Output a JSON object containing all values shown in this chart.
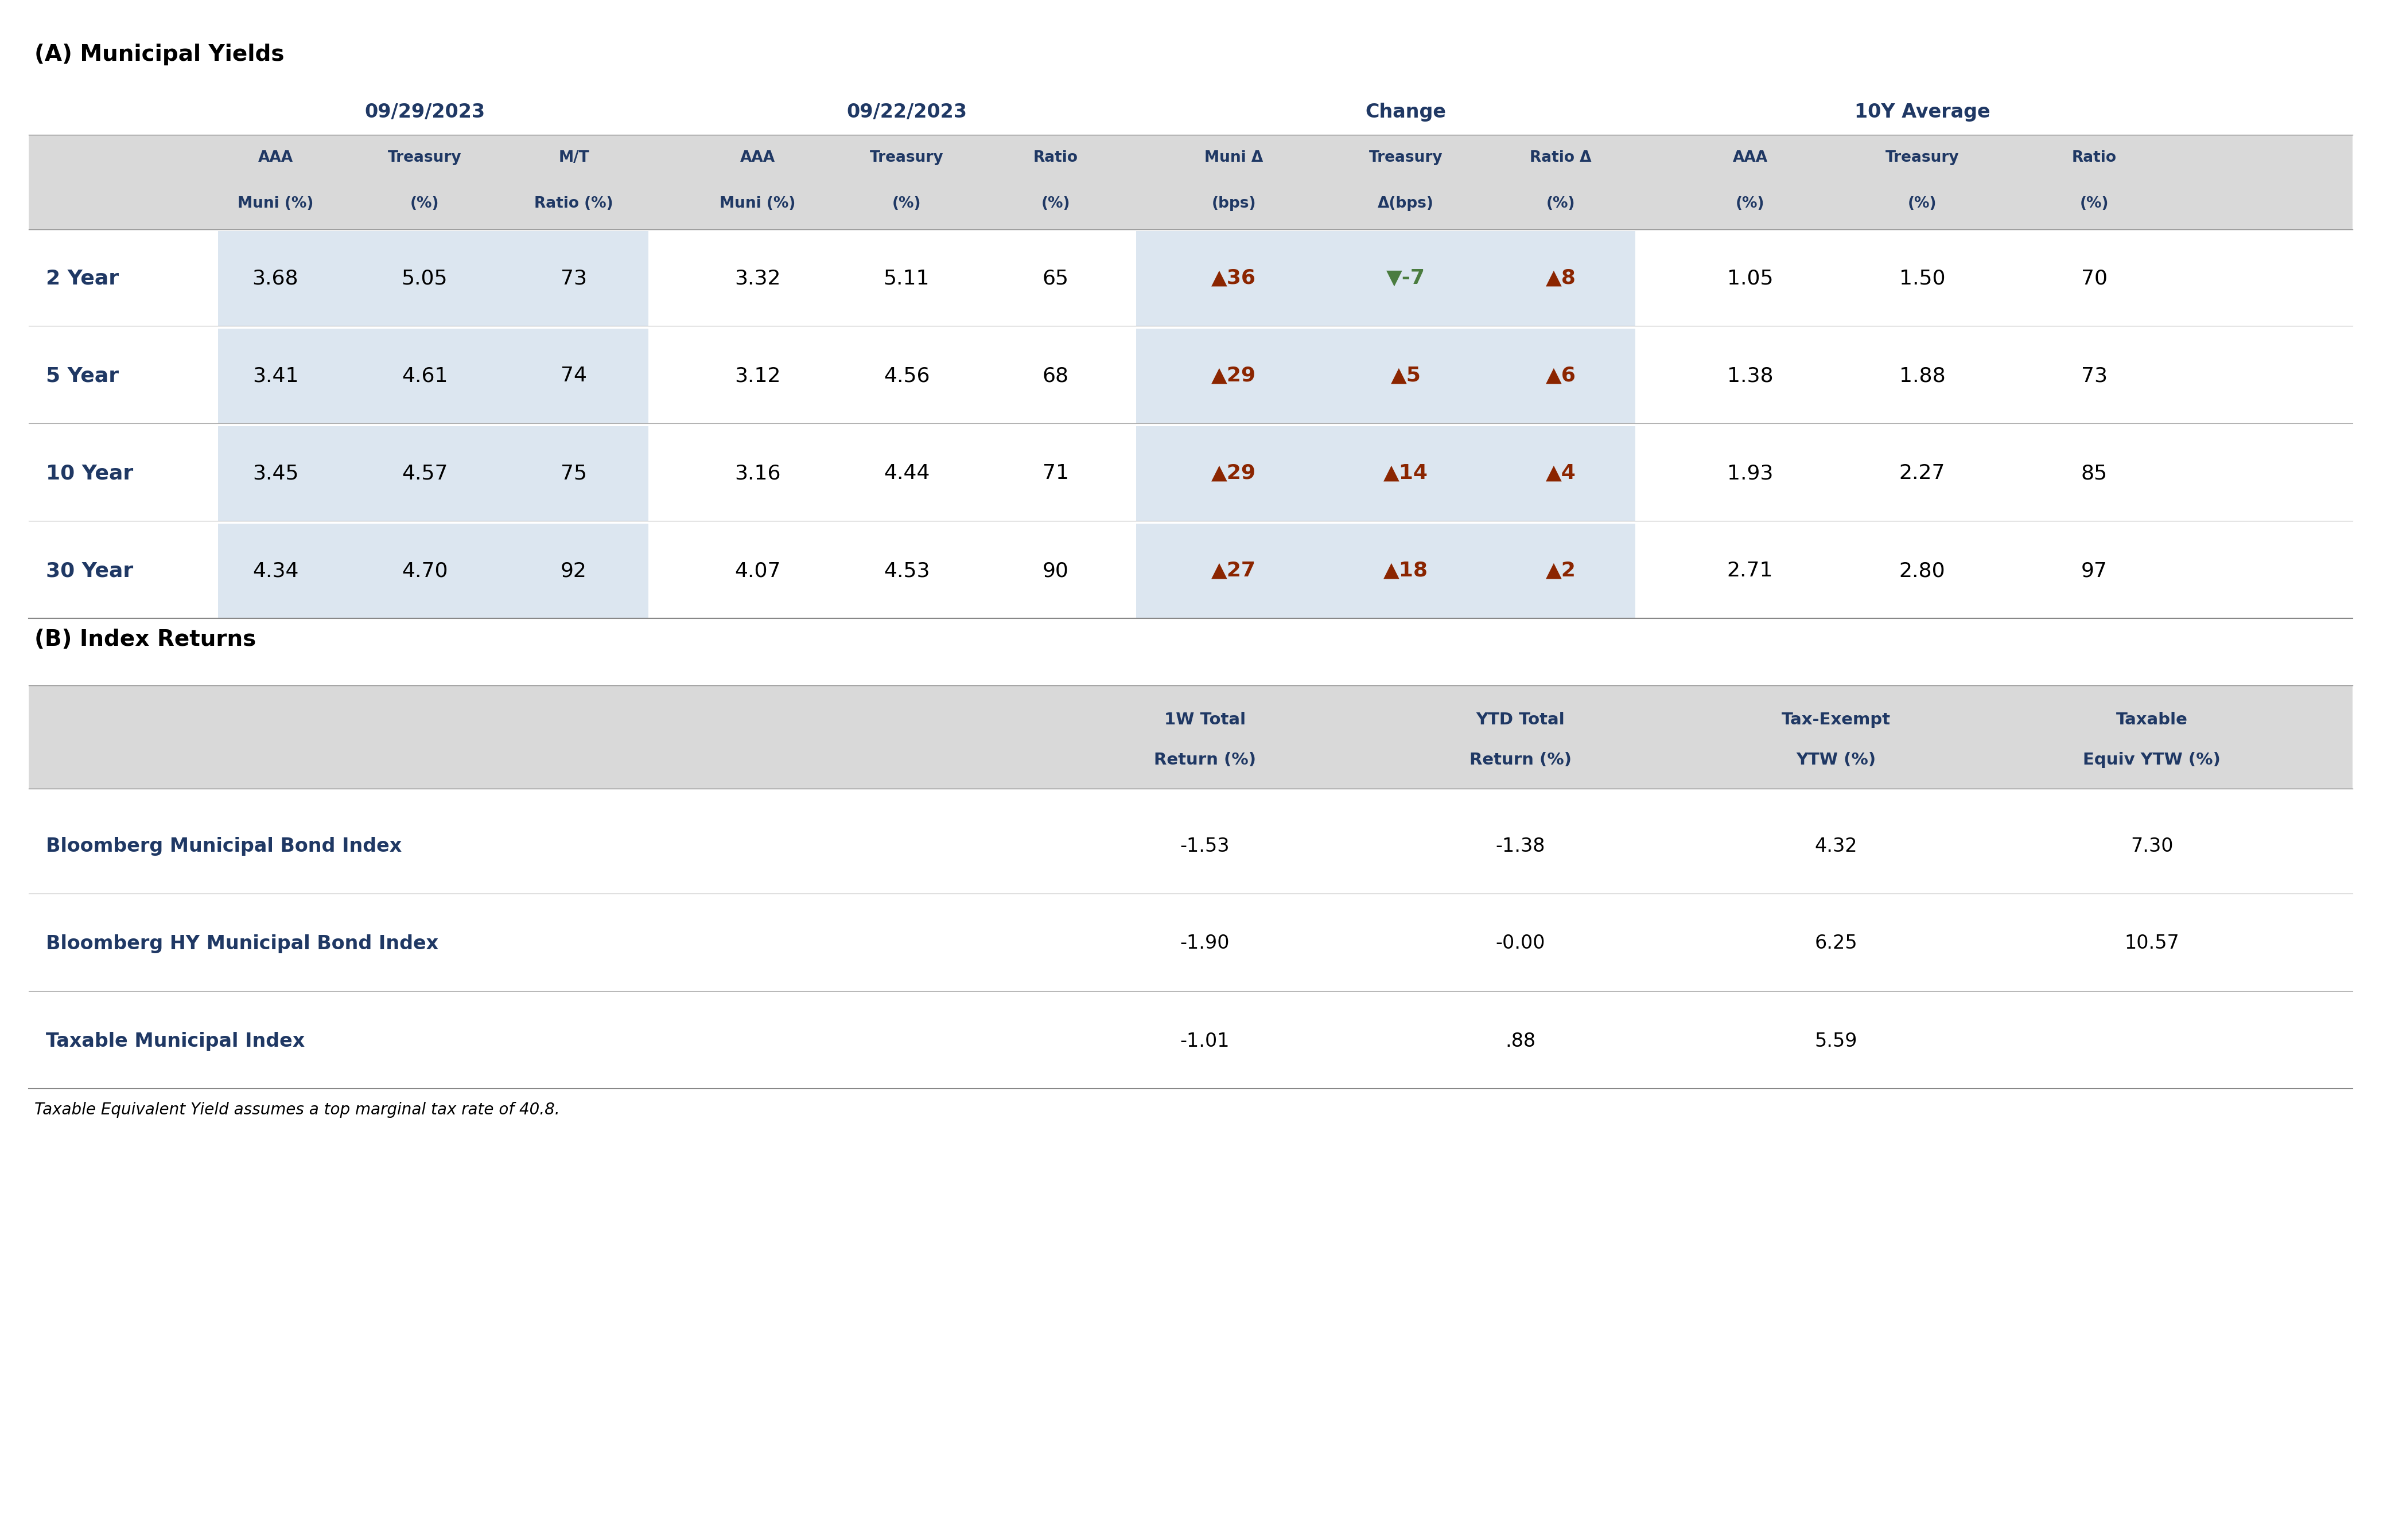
{
  "section_a_title": "(A) Municipal Yields",
  "section_b_title": "(B) Index Returns",
  "footnote": "Taxable Equivalent Yield assumes a top marginal tax rate of 40.8.",
  "col_group_headers": [
    "09/29/2023",
    "09/22/2023",
    "Change",
    "10Y Average"
  ],
  "col_group_header_color": "#1F3864",
  "sub_headers_line1": [
    "AAA",
    "Treasury",
    "M/T",
    "AAA",
    "Treasury",
    "Ratio",
    "Muni Δ",
    "Treasury",
    "Ratio Δ",
    "AAA",
    "Treasury",
    "Ratio"
  ],
  "sub_headers_line2": [
    "Muni (%)",
    "(%)",
    "Ratio (%)",
    "Muni (%)",
    "(%)",
    "(%)",
    "(bps)",
    "Δ(bps)",
    "(%)",
    "(%)",
    "(%)",
    "(%)"
  ],
  "row_labels": [
    "2 Year",
    "5 Year",
    "10 Year",
    "30 Year"
  ],
  "row_label_color": "#1F3864",
  "table_data": [
    [
      "3.68",
      "5.05",
      "73",
      "3.32",
      "5.11",
      "65",
      "36",
      "-7",
      "8",
      "1.05",
      "1.50",
      "70"
    ],
    [
      "3.41",
      "4.61",
      "74",
      "3.12",
      "4.56",
      "68",
      "29",
      "5",
      "6",
      "1.38",
      "1.88",
      "73"
    ],
    [
      "3.45",
      "4.57",
      "75",
      "3.16",
      "4.44",
      "71",
      "29",
      "14",
      "4",
      "1.93",
      "2.27",
      "85"
    ],
    [
      "4.34",
      "4.70",
      "92",
      "4.07",
      "4.53",
      "90",
      "27",
      "18",
      "2",
      "2.71",
      "2.80",
      "97"
    ]
  ],
  "change_arrows": {
    "muni_delta": [
      {
        "arrow": "▲",
        "color": "#8B2500"
      },
      {
        "arrow": "▲",
        "color": "#8B2500"
      },
      {
        "arrow": "▲",
        "color": "#8B2500"
      },
      {
        "arrow": "▲",
        "color": "#8B2500"
      }
    ],
    "treasury_delta": [
      {
        "arrow": "▼",
        "color": "#4a7c3f"
      },
      {
        "arrow": "▲",
        "color": "#8B2500"
      },
      {
        "arrow": "▲",
        "color": "#8B2500"
      },
      {
        "arrow": "▲",
        "color": "#8B2500"
      }
    ],
    "ratio_delta": [
      {
        "arrow": "▲",
        "color": "#8B2500"
      },
      {
        "arrow": "▲",
        "color": "#8B2500"
      },
      {
        "arrow": "▲",
        "color": "#8B2500"
      },
      {
        "arrow": "▲",
        "color": "#8B2500"
      }
    ]
  },
  "index_rows": [
    {
      "name": "Bloomberg Municipal Bond Index",
      "1w_return": "-1.53",
      "ytd_return": "-1.38",
      "tax_exempt_ytw": "4.32",
      "taxable_equiv_ytw": "7.30"
    },
    {
      "name": "Bloomberg HY Municipal Bond Index",
      "1w_return": "-1.90",
      "ytd_return": "-0.00",
      "tax_exempt_ytw": "6.25",
      "taxable_equiv_ytw": "10.57"
    },
    {
      "name": "Taxable Municipal Index",
      "1w_return": "-1.01",
      "ytd_return": ".88",
      "tax_exempt_ytw": "5.59",
      "taxable_equiv_ytw": ""
    }
  ],
  "index_col_headers_line1": [
    "1W Total",
    "YTD Total",
    "Tax-Exempt",
    "Taxable"
  ],
  "index_col_headers_line2": [
    "Return (%)",
    "Return (%)",
    "YTW (%)",
    "Equiv YTW (%)"
  ],
  "bg_white": "#ffffff",
  "bg_light_blue": "#dce6f0",
  "bg_light_gray": "#d9d9d9",
  "bg_medium_gray": "#e8e8e8",
  "text_dark": "#1a1a1a",
  "text_dark_blue": "#1F3864",
  "text_black": "#000000",
  "line_color": "#aaaaaa",
  "dark_line_color": "#888888"
}
